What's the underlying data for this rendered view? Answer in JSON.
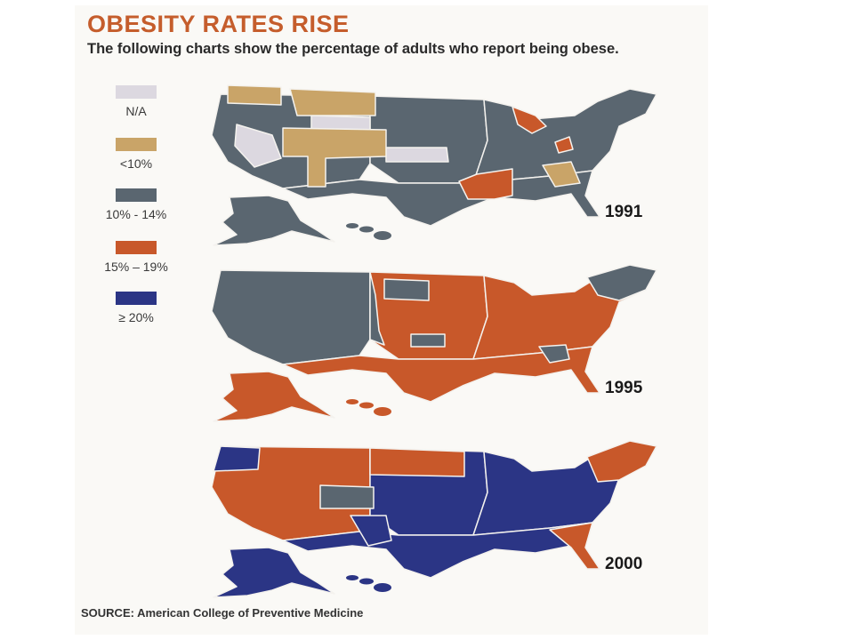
{
  "title": "OBESITY RATES RISE",
  "subtitle": "The following charts show the percentage of adults who report being obese.",
  "colors": {
    "title": "#c55d2c",
    "na": "#dcd8e0",
    "lt10": "#c9a468",
    "r10_14": "#5a6670",
    "r15_19": "#c8582a",
    "ge20": "#2b3585"
  },
  "legend": [
    {
      "key": "na",
      "label": "N/A"
    },
    {
      "key": "lt10",
      "label": "<10%"
    },
    {
      "key": "r10_14",
      "label": "10% - 14%"
    },
    {
      "key": "r15_19",
      "label": "15% – 19%"
    },
    {
      "key": "ge20",
      "label": "≥ 20%"
    }
  ],
  "maps": [
    {
      "year": "1991",
      "fills": {
        "west": "r10_14",
        "central": "r10_14",
        "east": "r10_14",
        "south": "r10_14",
        "alaska": "r10_14",
        "hawaii": "r10_14",
        "highlight": "na",
        "highlight2": "lt10",
        "highlight3": "r15_19"
      }
    },
    {
      "year": "1995",
      "fills": {
        "west": "r10_14",
        "central": "r15_19",
        "east": "r15_19",
        "south": "r15_19",
        "alaska": "r15_19",
        "hawaii": "r15_19",
        "highlight": "r10_14",
        "highlight2": "r10_14",
        "highlight3": "r10_14"
      }
    },
    {
      "year": "2000",
      "fills": {
        "west": "r15_19",
        "central": "ge20",
        "east": "ge20",
        "south": "ge20",
        "alaska": "ge20",
        "hawaii": "ge20",
        "highlight": "r10_14",
        "highlight2": "ge20",
        "highlight3": "r15_19"
      }
    }
  ],
  "source": "SOURCE: American College of Preventive Medicine"
}
